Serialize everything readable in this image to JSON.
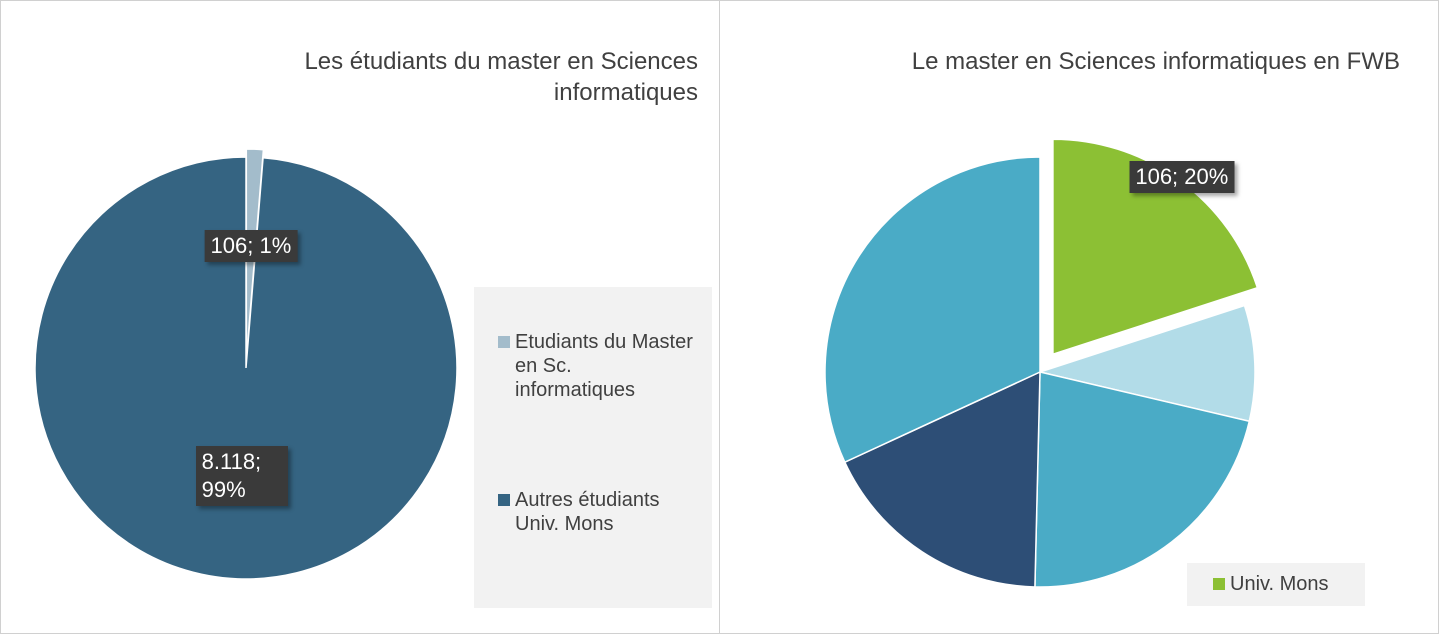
{
  "chart_data": [
    {
      "type": "pie",
      "title": "Les étudiants du master en Sciences informatiques",
      "categories": [
        "Etudiants du Master en Sc. informatiques",
        "Autres étudiants Univ. Mons"
      ],
      "values": [
        106,
        8118
      ],
      "value_labels": [
        "106; 1%",
        "8.118; 99%"
      ],
      "colors": [
        "#a3bccb",
        "#356482"
      ]
    },
    {
      "type": "pie",
      "title": "Le master en Sciences informatiques en FWB",
      "categories": [
        "Univ. Mons",
        null,
        null,
        null,
        null
      ],
      "values": [
        106,
        46,
        115,
        94,
        169
      ],
      "value_labels": [
        "106; 20%",
        null,
        null,
        null,
        null
      ],
      "colors": [
        "#8cc034",
        "#b2dce8",
        "#4aabc6",
        "#2d4e76",
        "#4aabc6"
      ]
    }
  ]
}
